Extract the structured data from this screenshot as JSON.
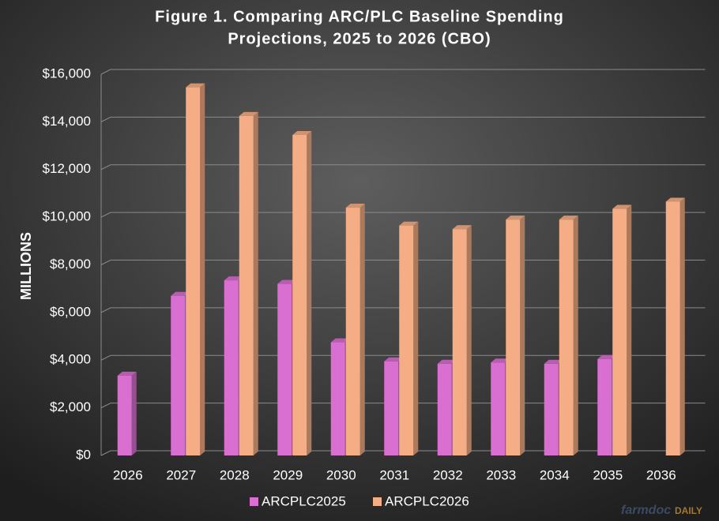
{
  "chart_data": {
    "type": "bar",
    "title": [
      "Figure 1. Comparing ARC/PLC Baseline Spending",
      "Projections, 2025 to 2026 (CBO)"
    ],
    "y_label": "MILLIONS",
    "categories": [
      "2026",
      "2027",
      "2028",
      "2029",
      "2030",
      "2031",
      "2032",
      "2033",
      "2034",
      "2035",
      "2036"
    ],
    "series": [
      {
        "name": "ARCPLC2025",
        "color": "#d96fd0",
        "values": [
          3350,
          6700,
          7350,
          7200,
          4750,
          3950,
          3850,
          3900,
          3850,
          4050,
          null
        ]
      },
      {
        "name": "ARCPLC2026",
        "color": "#f4ad84",
        "values": [
          null,
          15450,
          14250,
          13450,
          10400,
          9650,
          9500,
          9900,
          9900,
          10350,
          10650
        ]
      }
    ],
    "ylim": [
      0,
      16000
    ],
    "yticks": [
      {
        "value": 0,
        "label": "$0"
      },
      {
        "value": 2000,
        "label": "$2,000"
      },
      {
        "value": 4000,
        "label": "$4,000"
      },
      {
        "value": 6000,
        "label": "$6,000"
      },
      {
        "value": 8000,
        "label": "$8,000"
      },
      {
        "value": 10000,
        "label": "$10,000"
      },
      {
        "value": 12000,
        "label": "$12,000"
      },
      {
        "value": 14000,
        "label": "$14,000"
      },
      {
        "value": 16000,
        "label": "$16,000"
      }
    ],
    "grid": true,
    "legend": "bottom",
    "watermark": [
      "farmdoc",
      "DAILY"
    ]
  }
}
